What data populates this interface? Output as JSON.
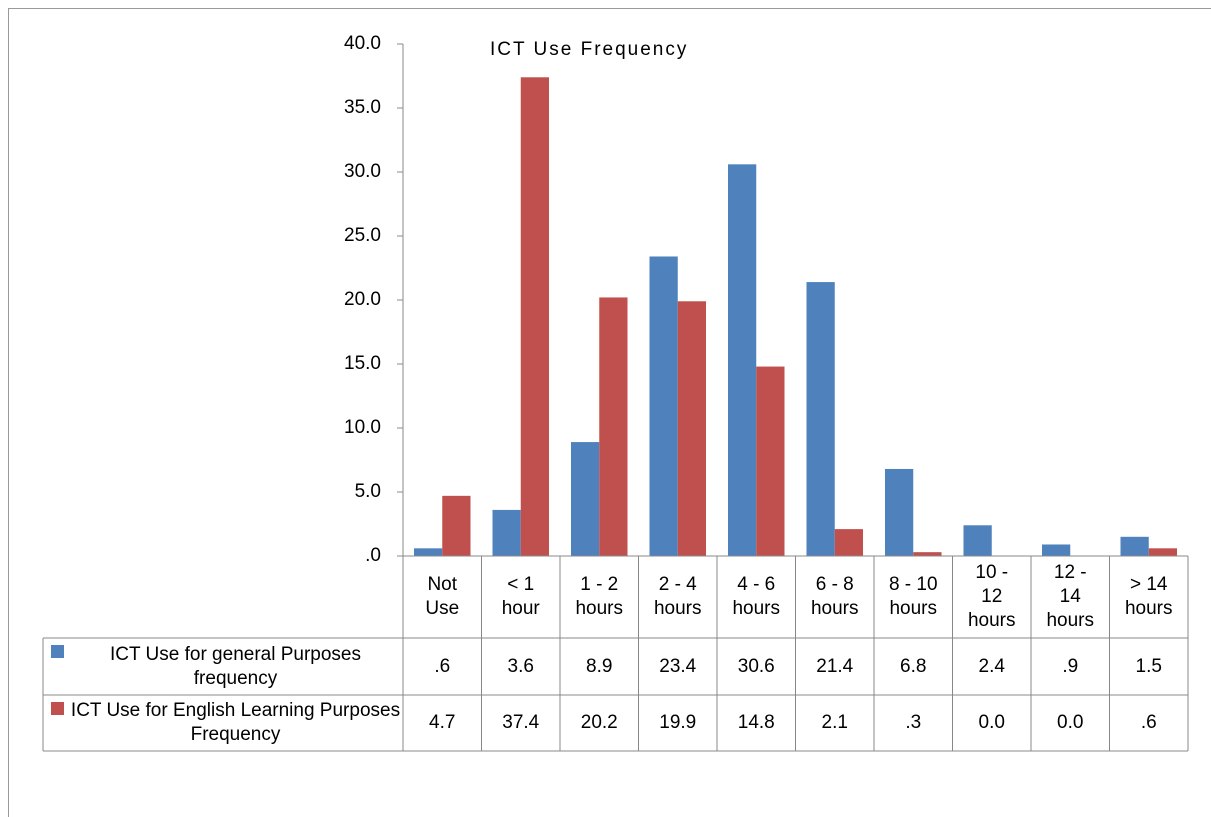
{
  "chart_data": {
    "type": "bar",
    "title": "ICT Use Frequency",
    "categories": [
      "Not Use",
      "< 1 hour",
      "1 - 2 hours",
      "2 - 4 hours",
      "4 - 6 hours",
      "6 - 8 hours",
      "8 - 10 hours",
      "10 - 12 hours",
      "12 - 14 hours",
      "> 14 hours"
    ],
    "series": [
      {
        "name": "ICT Use for general Purposes frequency",
        "color": "#4f81bd",
        "values": [
          0.6,
          3.6,
          8.9,
          23.4,
          30.6,
          21.4,
          6.8,
          2.4,
          0.9,
          1.5
        ],
        "value_labels": [
          ".6",
          "3.6",
          "8.9",
          "23.4",
          "30.6",
          "21.4",
          "6.8",
          "2.4",
          ".9",
          "1.5"
        ]
      },
      {
        "name": "ICT Use for English Learning Purposes Frequency",
        "color": "#c0504d",
        "values": [
          4.7,
          37.4,
          20.2,
          19.9,
          14.8,
          2.1,
          0.3,
          0,
          0,
          0.6
        ],
        "value_labels": [
          "4.7",
          "37.4",
          "20.2",
          "19.9",
          "14.8",
          "2.1",
          ".3",
          "0.0",
          "0.0",
          ".6"
        ]
      }
    ],
    "ylim": [
      0,
      40
    ],
    "yticks": [
      {
        "value": 0,
        "label": ".0"
      },
      {
        "value": 5,
        "label": "5.0"
      },
      {
        "value": 10,
        "label": "10.0"
      },
      {
        "value": 15,
        "label": "15.0"
      },
      {
        "value": 20,
        "label": "20.0"
      },
      {
        "value": 25,
        "label": "25.0"
      },
      {
        "value": 30,
        "label": "30.0"
      },
      {
        "value": 35,
        "label": "35.0"
      },
      {
        "value": 40,
        "label": "40.0"
      }
    ],
    "data_table": true
  }
}
